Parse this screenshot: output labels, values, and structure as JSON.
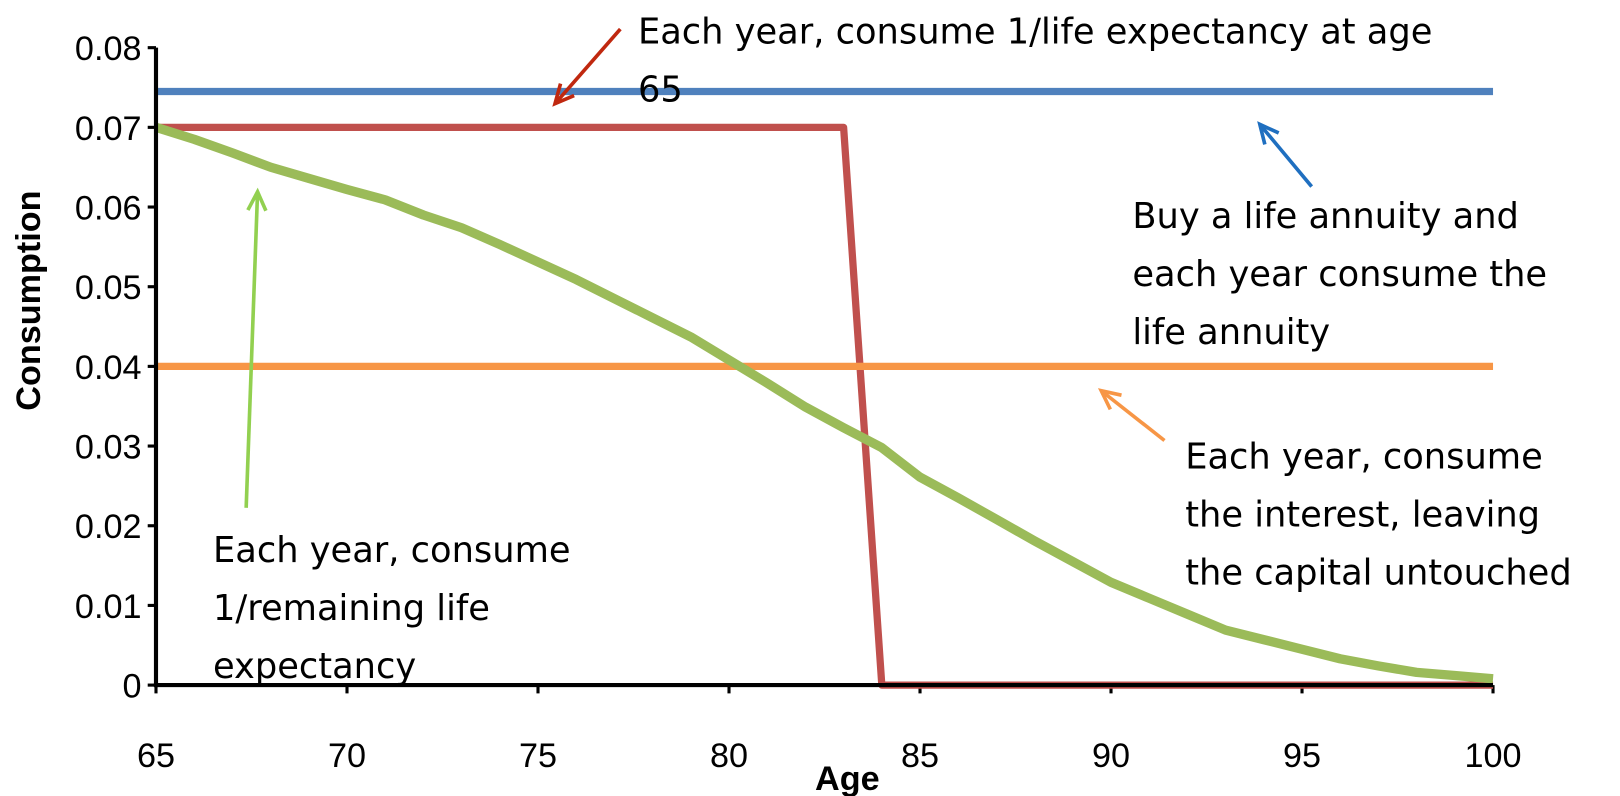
{
  "chart_data": {
    "type": "line",
    "xlabel": "Age",
    "ylabel": "Consumption",
    "x": [
      65,
      66,
      67,
      68,
      69,
      70,
      71,
      72,
      73,
      74,
      75,
      76,
      77,
      78,
      79,
      80,
      81,
      82,
      83,
      84,
      85,
      86,
      87,
      88,
      89,
      90,
      91,
      92,
      93,
      94,
      95,
      96,
      97,
      98,
      99,
      100
    ],
    "series": [
      {
        "color": "#4f81bd",
        "values": [
          0.0745,
          0.0745,
          0.0745,
          0.0745,
          0.0745,
          0.0745,
          0.0745,
          0.0745,
          0.0745,
          0.0745,
          0.0745,
          0.0745,
          0.0745,
          0.0745,
          0.0745,
          0.0745,
          0.0745,
          0.0745,
          0.0745,
          0.0745,
          0.0745,
          0.0745,
          0.0745,
          0.0745,
          0.0745,
          0.0745,
          0.0745,
          0.0745,
          0.0745,
          0.0745,
          0.0745,
          0.0745,
          0.0745,
          0.0745,
          0.0745,
          0.0745
        ]
      },
      {
        "color": "#c0504d",
        "values": [
          0.07,
          0.07,
          0.07,
          0.07,
          0.07,
          0.07,
          0.07,
          0.07,
          0.07,
          0.07,
          0.07,
          0.07,
          0.07,
          0.07,
          0.07,
          0.07,
          0.07,
          0.07,
          0.07,
          0,
          0,
          0,
          0,
          0,
          0,
          0,
          0,
          0,
          0,
          0,
          0,
          0,
          0,
          0,
          0,
          0
        ]
      },
      {
        "color": "#f79646",
        "values": [
          0.04,
          0.04,
          0.04,
          0.04,
          0.04,
          0.04,
          0.04,
          0.04,
          0.04,
          0.04,
          0.04,
          0.04,
          0.04,
          0.04,
          0.04,
          0.04,
          0.04,
          0.04,
          0.04,
          0.04,
          0.04,
          0.04,
          0.04,
          0.04,
          0.04,
          0.04,
          0.04,
          0.04,
          0.04,
          0.04,
          0.04,
          0.04,
          0.04,
          0.04,
          0.04,
          0.04
        ]
      },
      {
        "color": "#9bbb59",
        "values": [
          0.07,
          0.0685,
          0.0668,
          0.065,
          0.0636,
          0.0622,
          0.0609,
          0.059,
          0.0574,
          0.0553,
          0.0531,
          0.0509,
          0.0485,
          0.0461,
          0.0437,
          0.0408,
          0.0379,
          0.0349,
          0.0323,
          0.0298,
          0.0261,
          0.0235,
          0.0208,
          0.0181,
          0.0155,
          0.0129,
          0.0109,
          0.0089,
          0.0069,
          0.0057,
          0.0045,
          0.0033,
          0.0024,
          0.0016,
          0.0012,
          0.0008
        ]
      }
    ],
    "xlim": [
      65,
      100
    ],
    "ylim": [
      0,
      0.08
    ],
    "xticks": [
      65,
      70,
      75,
      80,
      85,
      90,
      95,
      100
    ],
    "yticks": [
      0,
      0.01,
      0.02,
      0.03,
      0.04,
      0.05,
      0.06,
      0.07,
      0.08
    ],
    "annotations": [
      {
        "lines": [
          "Each year, consume 1/life expectancy at age",
          "65"
        ],
        "color": "#c0280f"
      },
      {
        "lines": [
          "Buy a life annuity and",
          "each year consume the",
          "life annuity"
        ],
        "color": "#1f6fc0"
      },
      {
        "lines": [
          "Each year, consume",
          "the interest, leaving",
          "the capital untouched"
        ],
        "color": "#f79646"
      },
      {
        "lines": [
          "Each year, consume",
          "1/remaining life",
          "expectancy"
        ],
        "color": "#92d050"
      }
    ]
  }
}
